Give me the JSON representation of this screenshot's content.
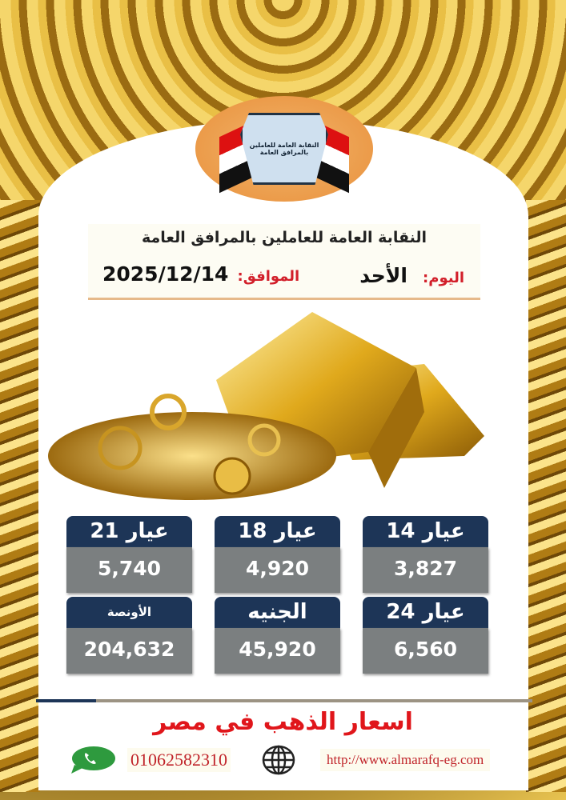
{
  "logo": {
    "text": "النقابة العامة للعاملين بالمرافق العامة",
    "colors": {
      "background": "#e8903c"
    }
  },
  "header": {
    "title": "النقابة العامة للعاملين بالمرافق العامة",
    "day_label": "اليوم:",
    "day_value": "الأحد",
    "date_label": "الموافق:",
    "date_value": "2025/12/14"
  },
  "prices": [
    {
      "label": "عيار 14",
      "value": "3,827"
    },
    {
      "label": "عيار 18",
      "value": "4,920"
    },
    {
      "label": "عيار 21",
      "value": "5,740"
    },
    {
      "label": "عيار 24",
      "value": "6,560"
    },
    {
      "label": "الجنيه",
      "value": "45,920"
    },
    {
      "label": "الأونصة",
      "value": "204,632"
    }
  ],
  "footer": {
    "title": "اسعار الذهب في مصر",
    "phone": "01062582310",
    "website": "http://www.almarafq-eg.com",
    "phone_icon": "whatsapp-icon",
    "web_icon": "globe-icon"
  },
  "colors": {
    "card_header": "#1d3557",
    "card_body": "#7b7f80",
    "accent_red": "#e0161b",
    "gold": "#d4a017"
  }
}
